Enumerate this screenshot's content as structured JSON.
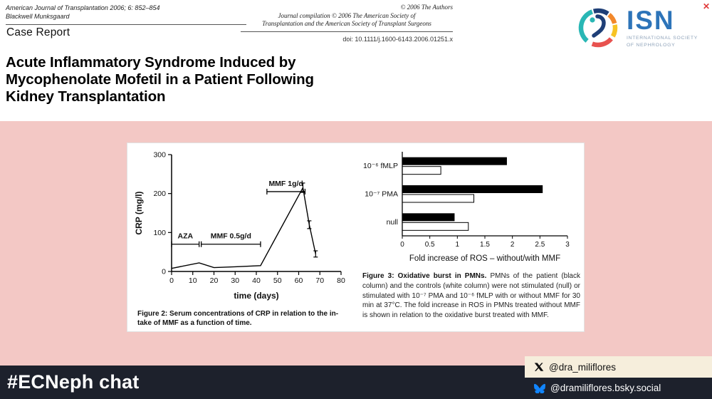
{
  "header": {
    "journal_line": "American Journal of Transplantation 2006; 6: 852–854",
    "publisher": "Blackwell Munksgaard",
    "section": "Case Report",
    "copyright": "© 2006 The Authors",
    "compilation": "Journal compilation © 2006 The American Society of\nTransplantation and the American Society of Transplant Surgeons",
    "doi": "doi: 10.1111/j.1600-6143.2006.01251.x",
    "close_label": "✕",
    "logo": {
      "acronym": "ISN",
      "name": "INTERNATIONAL SOCIETY\nOF NEPHROLOGY"
    }
  },
  "title": "Acute Inflammatory Syndrome Induced by\nMycophenolate Mofetil in a Patient Following\nKidney Transplantation",
  "figures": {
    "fig2_caption": "Figure 2:  Serum concentrations of CRP in relation to the in-\ntake of MMF as a function of time.",
    "fig3_caption_lead": "Figure 3:  Oxidative burst in PMNs.",
    "fig3_caption_body": " PMNs of the patient (black column) and the controls (white column) were not stimulated (null) or stimulated with 10⁻⁷ PMA and 10⁻⁶ fMLP with or without MMF for 30 min at 37°C. The fold increase in ROS in PMNs treated without MMF is shown in relation to the oxidative burst treated with MMF."
  },
  "chart_data": [
    {
      "type": "line",
      "title": "",
      "xlabel": "time (days)",
      "ylabel": "CRP (mg/l)",
      "xlim": [
        0,
        80
      ],
      "ylim": [
        0,
        300
      ],
      "xticks": [
        0,
        10,
        20,
        30,
        40,
        50,
        60,
        70,
        80
      ],
      "yticks": [
        0,
        100,
        200,
        300
      ],
      "points": [
        [
          0,
          8
        ],
        [
          13,
          22
        ],
        [
          20,
          10
        ],
        [
          30,
          12
        ],
        [
          42,
          15
        ],
        [
          62,
          215
        ],
        [
          65,
          120
        ],
        [
          68,
          45
        ]
      ],
      "yerr": [
        0,
        0,
        0,
        0,
        0,
        12,
        10,
        8
      ],
      "annotations": [
        {
          "label": "AZA",
          "x1": 0,
          "x2": 13,
          "y": 70
        },
        {
          "label": "MMF 0.5g/d",
          "x1": 14,
          "x2": 42,
          "y": 70
        },
        {
          "label": "MMF 1g/d",
          "x1": 45,
          "x2": 63,
          "y": 205
        }
      ],
      "grid": false,
      "line_color": "#000000"
    },
    {
      "type": "bar",
      "orientation": "horizontal",
      "categories": [
        "10⁻⁶ fMLP",
        "10⁻⁷ PMA",
        "null"
      ],
      "series": [
        {
          "name": "patient (black column)",
          "color": "#000000",
          "values": [
            1.9,
            2.55,
            0.95
          ]
        },
        {
          "name": "controls (white column)",
          "color": "#ffffff",
          "values": [
            0.7,
            1.3,
            1.2
          ]
        }
      ],
      "xlabel": "Fold increase of ROS – without/with MMF",
      "xlim": [
        0,
        3
      ],
      "xticks": [
        0,
        0.5,
        1,
        1.5,
        2,
        2.5,
        3
      ],
      "grid": false,
      "legend": "none"
    }
  ],
  "footer": {
    "hashtag": "#ECNeph chat",
    "x_handle": "@dra_miliflores",
    "bluesky_handle": "@dramiliflores.bsky.social"
  },
  "colors": {
    "background_pink": "#f3c8c5",
    "footer_navy": "#1d212c",
    "badge_cream": "#f6eedc",
    "isn_blue": "#2d74b9",
    "bluesky_blue": "#1185fe",
    "close_red": "#e03a3a"
  }
}
